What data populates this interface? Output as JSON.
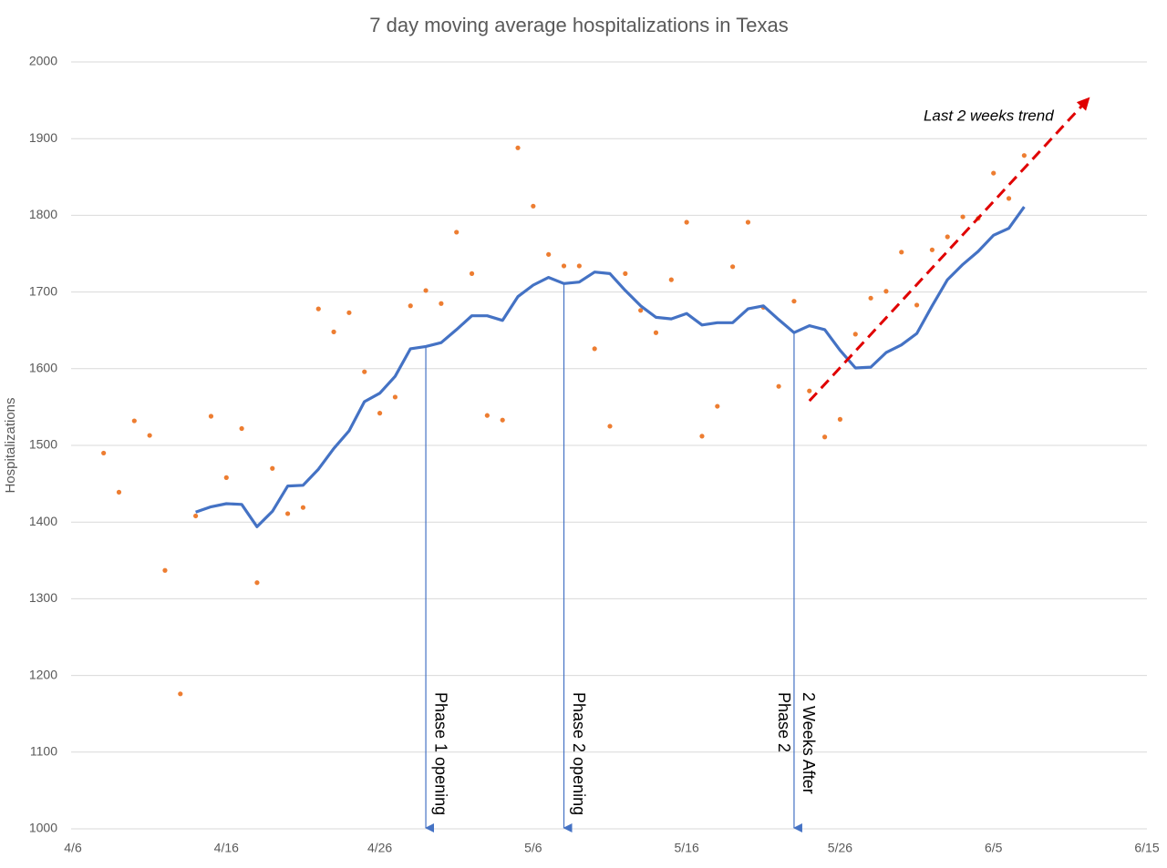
{
  "chart_data": {
    "type": "line",
    "title": "7 day moving average hospitalizations in Texas",
    "y_label": "Hospitalizations",
    "xlim": [
      "4/6",
      "6/15"
    ],
    "xticks": [
      "4/6",
      "4/16",
      "4/26",
      "5/6",
      "5/16",
      "5/26",
      "6/5",
      "6/15"
    ],
    "ylim": [
      1000,
      2000
    ],
    "yticks": [
      1000,
      1100,
      1200,
      1300,
      1400,
      1500,
      1600,
      1700,
      1800,
      1900,
      2000
    ],
    "grid": true,
    "series": [
      {
        "mode": "markers",
        "color": "#ed7d31",
        "x": [
          "4/8",
          "4/9",
          "4/10",
          "4/11",
          "4/12",
          "4/13",
          "4/14",
          "4/15",
          "4/16",
          "4/17",
          "4/18",
          "4/19",
          "4/20",
          "4/21",
          "4/22",
          "4/23",
          "4/24",
          "4/25",
          "4/26",
          "4/27",
          "4/28",
          "4/29",
          "4/30",
          "5/1",
          "5/2",
          "5/3",
          "5/4",
          "5/5",
          "5/6",
          "5/7",
          "5/8",
          "5/9",
          "5/10",
          "5/11",
          "5/12",
          "5/13",
          "5/14",
          "5/15",
          "5/16",
          "5/17",
          "5/18",
          "5/19",
          "5/20",
          "5/21",
          "5/22",
          "5/23",
          "5/24",
          "5/25",
          "5/26",
          "5/27",
          "5/28",
          "5/29",
          "5/30",
          "5/31",
          "6/1",
          "6/2",
          "6/3",
          "6/4",
          "6/5",
          "6/6",
          "6/7"
        ],
        "values": [
          1490,
          1439,
          1532,
          1513,
          1337,
          1176,
          1408,
          1538,
          1458,
          1522,
          1321,
          1470,
          1411,
          1419,
          1678,
          1648,
          1673,
          1596,
          1542,
          1563,
          1682,
          1702,
          1685,
          1778,
          1724,
          1539,
          1533,
          1888,
          1812,
          1749,
          1734,
          1734,
          1626,
          1525,
          1724,
          1676,
          1647,
          1716,
          1791,
          1512,
          1551,
          1733,
          1791,
          1680,
          1577,
          1688,
          1571,
          1511,
          1534,
          1645,
          1692,
          1701,
          1752,
          1683,
          1755,
          1772,
          1798,
          1796,
          1855,
          1822,
          1878
        ]
      },
      {
        "mode": "line",
        "color": "#4472c4",
        "x": [
          "4/14",
          "4/15",
          "4/16",
          "4/17",
          "4/18",
          "4/19",
          "4/20",
          "4/21",
          "4/22",
          "4/23",
          "4/24",
          "4/25",
          "4/26",
          "4/27",
          "4/28",
          "4/29",
          "4/30",
          "5/1",
          "5/2",
          "5/3",
          "5/4",
          "5/5",
          "5/6",
          "5/7",
          "5/8",
          "5/9",
          "5/10",
          "5/11",
          "5/12",
          "5/13",
          "5/14",
          "5/15",
          "5/16",
          "5/17",
          "5/18",
          "5/19",
          "5/20",
          "5/21",
          "5/22",
          "5/23",
          "5/24",
          "5/25",
          "5/26",
          "5/27",
          "5/28",
          "5/29",
          "5/30",
          "5/31",
          "6/1",
          "6/2",
          "6/3",
          "6/4",
          "6/5",
          "6/6",
          "6/7"
        ],
        "values": [
          1413,
          1420,
          1424,
          1423,
          1394,
          1414,
          1447,
          1448,
          1469,
          1496,
          1519,
          1557,
          1568,
          1590,
          1626,
          1629,
          1634,
          1651,
          1669,
          1669,
          1663,
          1694,
          1709,
          1719,
          1711,
          1713,
          1726,
          1724,
          1702,
          1682,
          1667,
          1665,
          1672,
          1657,
          1660,
          1660,
          1678,
          1682,
          1664,
          1647,
          1656,
          1651,
          1624,
          1601,
          1602,
          1621,
          1631,
          1646,
          1682,
          1716,
          1736,
          1753,
          1774,
          1783,
          1811
        ]
      }
    ],
    "annotations": [
      {
        "x": "4/29",
        "lines": [
          "Phase 1 opening"
        ]
      },
      {
        "x": "5/8",
        "lines": [
          "Phase 2 opening"
        ]
      },
      {
        "x": "5/23",
        "lines": [
          "2 Weeks After",
          "Phase 2"
        ]
      }
    ],
    "trend": {
      "label": "Last 2 weeks trend",
      "color": "#e00000",
      "x": [
        "5/24",
        "6/11"
      ],
      "y": [
        1558,
        1948
      ]
    }
  }
}
